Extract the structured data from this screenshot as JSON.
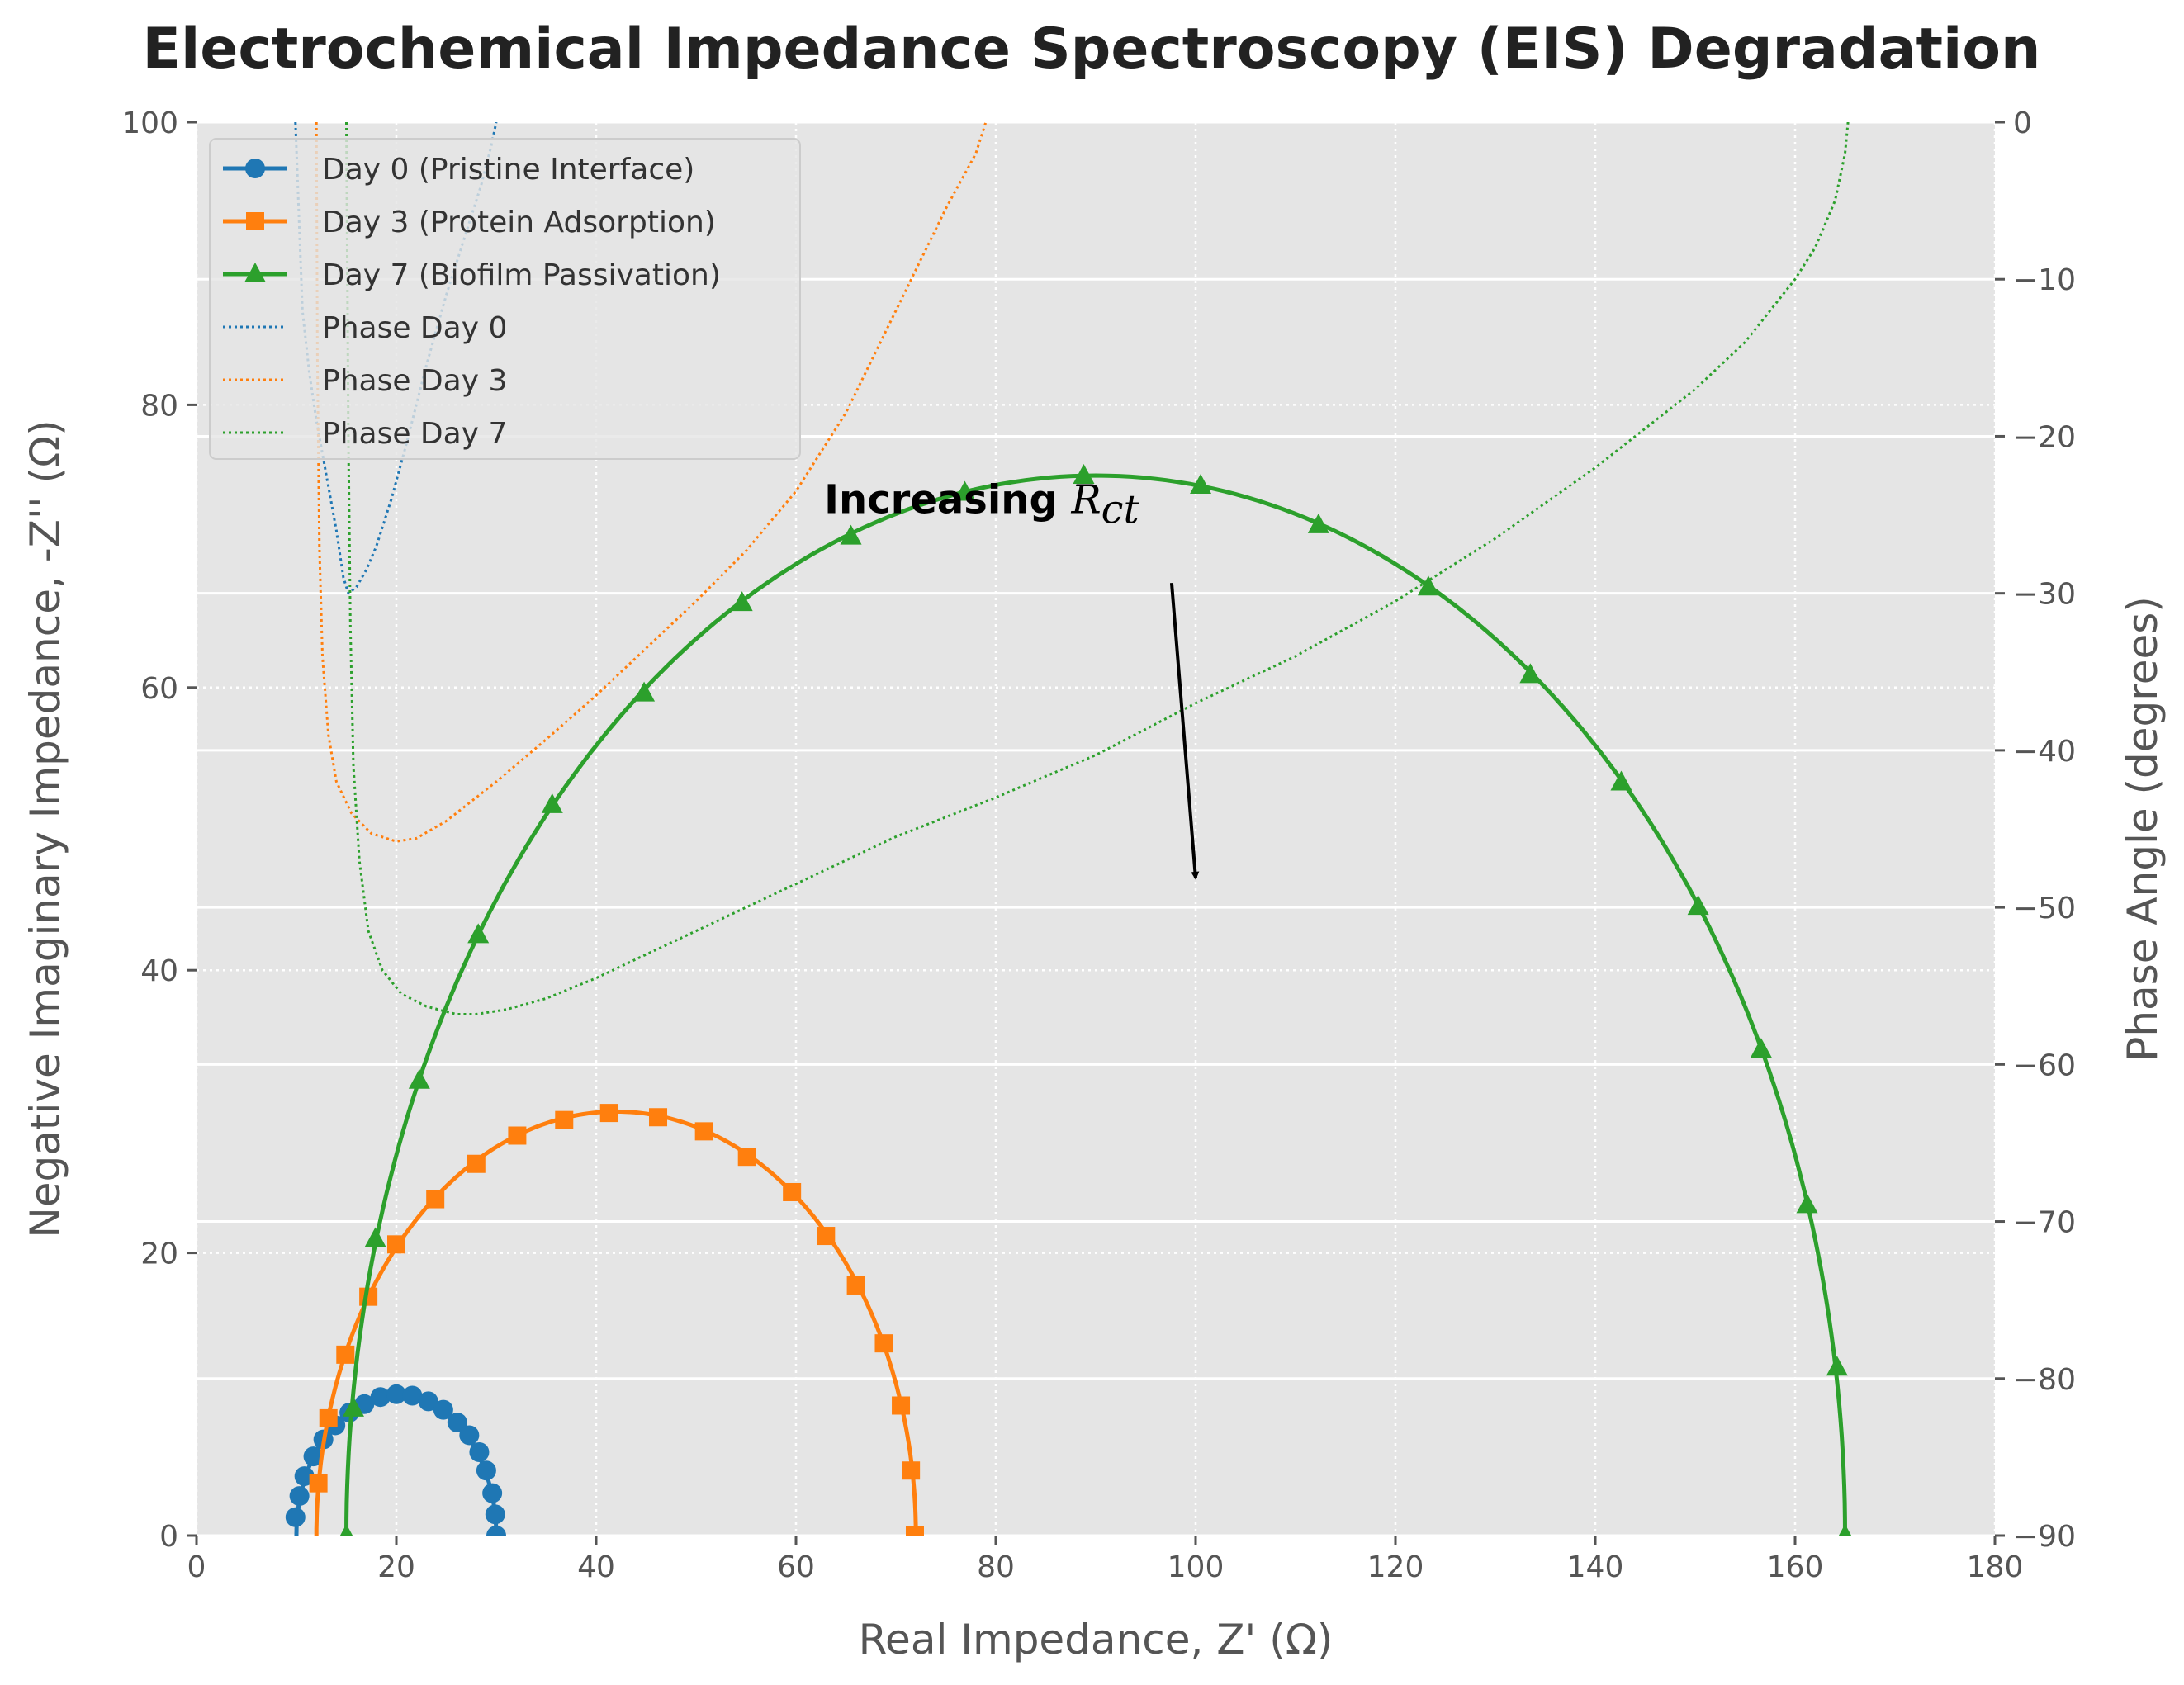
{
  "chart_data": {
    "type": "line",
    "title": "Electrochemical Impedance Spectroscopy (EIS) Degradation",
    "xlabel": "Real Impedance, Z' (Ω)",
    "ylabel": "Negative Imaginary Impedance, -Z'' (Ω)",
    "y2label": "Phase Angle (degrees)",
    "xlim": [
      0,
      180
    ],
    "ylim": [
      0,
      100
    ],
    "y2lim": [
      -90,
      0
    ],
    "xticks": [
      0,
      20,
      40,
      60,
      80,
      100,
      120,
      140,
      160,
      180
    ],
    "yticks": [
      0,
      20,
      40,
      60,
      80,
      100
    ],
    "y2ticks": [
      0,
      -10,
      -20,
      -30,
      -40,
      -50,
      -60,
      -70,
      -80,
      -90
    ],
    "y2tick_labels": [
      "0",
      "−10",
      "−20",
      "−30",
      "−40",
      "−50",
      "−60",
      "−70",
      "−80",
      "−90"
    ],
    "grid": true,
    "legend_position": "top-left",
    "series": [
      {
        "name": "Day 0 (Pristine Interface)",
        "axis": "left",
        "marker": "circle",
        "color": "#1f77b4",
        "semicircle": {
          "r_s": 10,
          "r_ct": 20
        },
        "points": [
          [
            9.9,
            1.3
          ],
          [
            10.3,
            2.8
          ],
          [
            10.8,
            4.2
          ],
          [
            11.7,
            5.6
          ],
          [
            12.7,
            6.8
          ],
          [
            13.9,
            7.8
          ],
          [
            15.3,
            8.7
          ],
          [
            16.8,
            9.3
          ],
          [
            18.4,
            9.8
          ],
          [
            20.0,
            10.0
          ],
          [
            21.6,
            9.9
          ],
          [
            23.2,
            9.5
          ],
          [
            24.7,
            8.9
          ],
          [
            26.1,
            8.0
          ],
          [
            27.3,
            7.1
          ],
          [
            28.3,
            5.9
          ],
          [
            29.0,
            4.6
          ],
          [
            29.6,
            3.0
          ],
          [
            29.9,
            1.5
          ],
          [
            30.0,
            0.0
          ]
        ]
      },
      {
        "name": "Day 3 (Protein Adsorption)",
        "axis": "left",
        "marker": "square",
        "color": "#ff7f0e",
        "semicircle": {
          "r_s": 12,
          "r_ct": 60
        },
        "points": [
          [
            12.2,
            3.7
          ],
          [
            13.2,
            8.3
          ],
          [
            14.9,
            12.8
          ],
          [
            17.2,
            16.9
          ],
          [
            20.0,
            20.6
          ],
          [
            23.9,
            23.8
          ],
          [
            28.0,
            26.3
          ],
          [
            32.1,
            28.3
          ],
          [
            36.8,
            29.4
          ],
          [
            41.3,
            29.9
          ],
          [
            46.2,
            29.6
          ],
          [
            50.8,
            28.6
          ],
          [
            55.1,
            26.8
          ],
          [
            59.6,
            24.3
          ],
          [
            63.0,
            21.2
          ],
          [
            66.0,
            17.7
          ],
          [
            68.8,
            13.6
          ],
          [
            70.5,
            9.2
          ],
          [
            71.5,
            4.6
          ],
          [
            71.9,
            0.0
          ]
        ]
      },
      {
        "name": "Day 7 (Biofilm Passivation)",
        "axis": "left",
        "marker": "triangle",
        "color": "#2ca02c",
        "semicircle": {
          "r_s": 15,
          "r_ct": 150
        },
        "points": [
          [
            15.0,
            0.0
          ],
          [
            15.7,
            9.0
          ],
          [
            17.9,
            21.0
          ],
          [
            22.3,
            32.2
          ],
          [
            28.2,
            42.5
          ],
          [
            35.6,
            51.7
          ],
          [
            44.8,
            59.6
          ],
          [
            54.6,
            66.0
          ],
          [
            65.5,
            70.7
          ],
          [
            76.9,
            73.8
          ],
          [
            88.8,
            75.0
          ],
          [
            100.5,
            74.3
          ],
          [
            112.3,
            71.5
          ],
          [
            123.3,
            67.1
          ],
          [
            133.5,
            60.9
          ],
          [
            142.6,
            53.3
          ],
          [
            150.3,
            44.5
          ],
          [
            156.6,
            34.4
          ],
          [
            161.2,
            23.4
          ],
          [
            164.2,
            11.9
          ],
          [
            165.0,
            0.0
          ]
        ]
      },
      {
        "name": "Phase Day 0",
        "axis": "right",
        "style": "dotted",
        "color": "#1f77b4",
        "points": [
          [
            9.9,
            0.0
          ],
          [
            10.6,
            -12.0
          ],
          [
            11.3,
            -16.0
          ],
          [
            12.0,
            -19.0
          ],
          [
            13.0,
            -22.5
          ],
          [
            14.0,
            -26.0
          ],
          [
            14.7,
            -29.0
          ],
          [
            15.2,
            -30.0
          ],
          [
            16.0,
            -29.6
          ],
          [
            17.0,
            -28.5
          ],
          [
            18.0,
            -27.0
          ],
          [
            19.5,
            -24.0
          ],
          [
            21.0,
            -20.5
          ],
          [
            23.0,
            -15.5
          ],
          [
            25.0,
            -11.0
          ],
          [
            27.0,
            -7.0
          ],
          [
            28.5,
            -4.0
          ],
          [
            29.5,
            -1.5
          ],
          [
            30.0,
            0.0
          ]
        ]
      },
      {
        "name": "Phase Day 3",
        "axis": "right",
        "style": "dotted",
        "color": "#ff7f0e",
        "points": [
          [
            12.0,
            0.0
          ],
          [
            12.1,
            -15.0
          ],
          [
            12.3,
            -27.0
          ],
          [
            12.6,
            -34.0
          ],
          [
            13.2,
            -39.0
          ],
          [
            14.0,
            -42.0
          ],
          [
            15.5,
            -44.0
          ],
          [
            17.5,
            -45.3
          ],
          [
            20.0,
            -45.8
          ],
          [
            22.0,
            -45.6
          ],
          [
            25.0,
            -44.5
          ],
          [
            30.0,
            -42.0
          ],
          [
            35.0,
            -39.3
          ],
          [
            40.0,
            -36.5
          ],
          [
            45.0,
            -33.5
          ],
          [
            50.0,
            -30.5
          ],
          [
            55.0,
            -27.3
          ],
          [
            60.0,
            -23.5
          ],
          [
            65.0,
            -18.5
          ],
          [
            70.0,
            -12.0
          ],
          [
            75.0,
            -5.5
          ],
          [
            78.0,
            -2.0
          ],
          [
            79.0,
            0.0
          ]
        ]
      },
      {
        "name": "Phase Day 7",
        "axis": "right",
        "style": "dotted",
        "color": "#2ca02c",
        "points": [
          [
            15.0,
            0.0
          ],
          [
            15.1,
            -10.0
          ],
          [
            15.2,
            -20.0
          ],
          [
            15.4,
            -32.0
          ],
          [
            15.7,
            -41.0
          ],
          [
            16.3,
            -47.0
          ],
          [
            17.2,
            -51.5
          ],
          [
            18.6,
            -54.0
          ],
          [
            20.5,
            -55.5
          ],
          [
            23.0,
            -56.3
          ],
          [
            26.0,
            -56.8
          ],
          [
            28.0,
            -56.8
          ],
          [
            31.0,
            -56.5
          ],
          [
            35.0,
            -55.8
          ],
          [
            40.0,
            -54.5
          ],
          [
            50.0,
            -51.5
          ],
          [
            60.0,
            -48.5
          ],
          [
            70.0,
            -45.5
          ],
          [
            80.0,
            -43.0
          ],
          [
            90.0,
            -40.3
          ],
          [
            100.0,
            -37.0
          ],
          [
            110.0,
            -34.0
          ],
          [
            120.0,
            -30.5
          ],
          [
            130.0,
            -26.5
          ],
          [
            140.0,
            -22.0
          ],
          [
            150.0,
            -17.0
          ],
          [
            155.0,
            -14.0
          ],
          [
            160.0,
            -10.0
          ],
          [
            162.0,
            -8.0
          ],
          [
            164.0,
            -5.0
          ],
          [
            165.0,
            -2.0
          ],
          [
            165.3,
            0.0
          ]
        ]
      }
    ],
    "annotations": [
      {
        "text": "Increasing ",
        "math": "R",
        "math_sub": "ct",
        "text_xy": [
          60,
          70
        ],
        "arrow_from": [
          97.6,
          67.4
        ],
        "arrow_to": [
          100,
          46.5
        ]
      }
    ]
  }
}
